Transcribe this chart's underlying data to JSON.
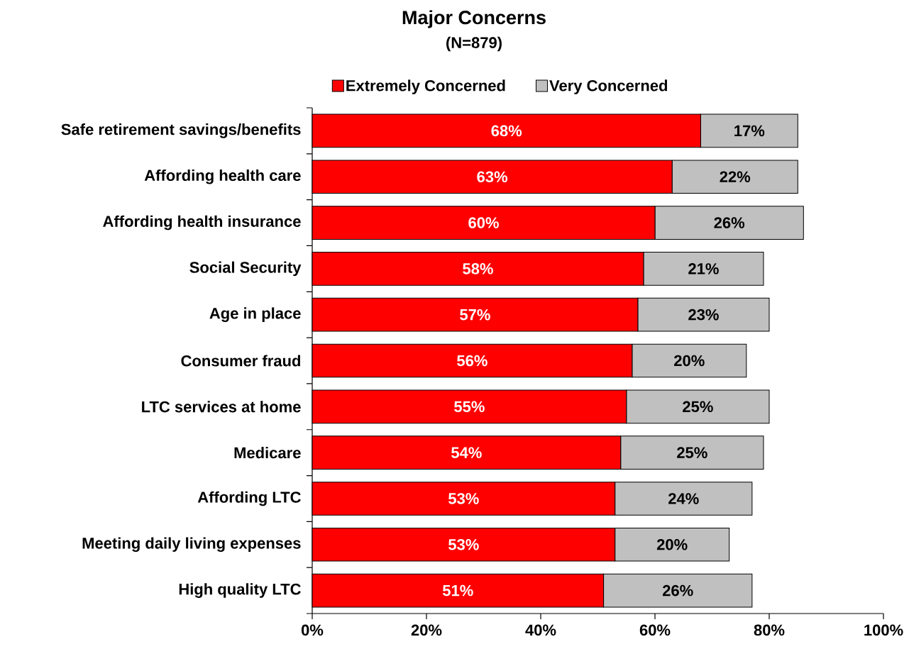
{
  "chart_data": {
    "type": "bar",
    "orientation": "horizontal",
    "stacked": true,
    "title": "Major Concerns",
    "subtitle": "(N=879)",
    "categories": [
      "Safe retirement savings/benefits",
      "Affording health care",
      "Affording health insurance",
      "Social Security",
      "Age in place",
      "Consumer fraud",
      "LTC services at home",
      "Medicare",
      "Affording LTC",
      "Meeting daily living expenses",
      "High quality LTC"
    ],
    "series": [
      {
        "name": "Extremely Concerned",
        "color": "#ff0000",
        "values": [
          68,
          63,
          60,
          58,
          57,
          56,
          55,
          54,
          53,
          53,
          51
        ],
        "value_labels": [
          "68%",
          "63%",
          "60%",
          "58%",
          "57%",
          "56%",
          "55%",
          "54%",
          "53%",
          "53%",
          "51%"
        ]
      },
      {
        "name": "Very Concerned",
        "color": "#c0c0c0",
        "values": [
          17,
          22,
          26,
          21,
          23,
          20,
          25,
          25,
          24,
          20,
          26
        ],
        "value_labels": [
          "17%",
          "22%",
          "26%",
          "21%",
          "23%",
          "20%",
          "25%",
          "25%",
          "24%",
          "20%",
          "26%"
        ]
      }
    ],
    "xlim": [
      0,
      100
    ],
    "xticks": [
      {
        "value": 0,
        "label": "0%"
      },
      {
        "value": 20,
        "label": "20%"
      },
      {
        "value": 40,
        "label": "40%"
      },
      {
        "value": 60,
        "label": "60%"
      },
      {
        "value": 80,
        "label": "80%"
      },
      {
        "value": 100,
        "label": "100%"
      }
    ],
    "legend": "top",
    "grid": false
  }
}
